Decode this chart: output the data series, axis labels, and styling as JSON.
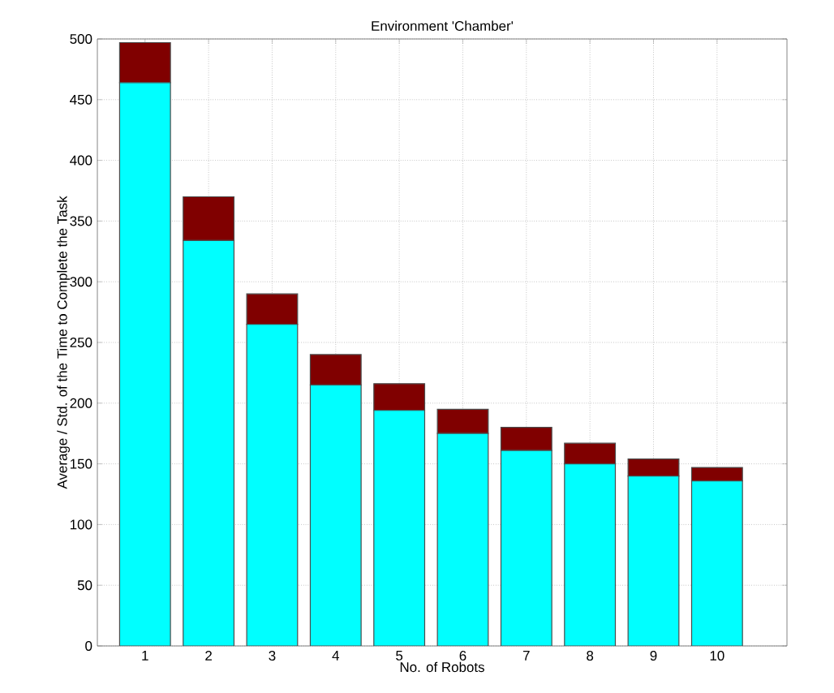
{
  "chart_data": {
    "type": "bar",
    "stacked": true,
    "title": "Environment 'Chamber'",
    "xlabel": "No. of Robots",
    "ylabel": "Average / Std. of the Time to Complete the Task",
    "categories": [
      "1",
      "2",
      "3",
      "4",
      "5",
      "6",
      "7",
      "8",
      "9",
      "10"
    ],
    "series": [
      {
        "color": "#00ffff",
        "values": [
          464,
          334,
          265,
          215,
          194,
          175,
          161,
          150,
          140,
          136
        ]
      },
      {
        "color": "#800000",
        "values": [
          33,
          36,
          25,
          25,
          22,
          20,
          19,
          17,
          14,
          11
        ]
      }
    ],
    "ylim": [
      0,
      500
    ],
    "yticks": [
      0,
      50,
      100,
      150,
      200,
      250,
      300,
      350,
      400,
      450,
      500
    ],
    "grid": true
  }
}
